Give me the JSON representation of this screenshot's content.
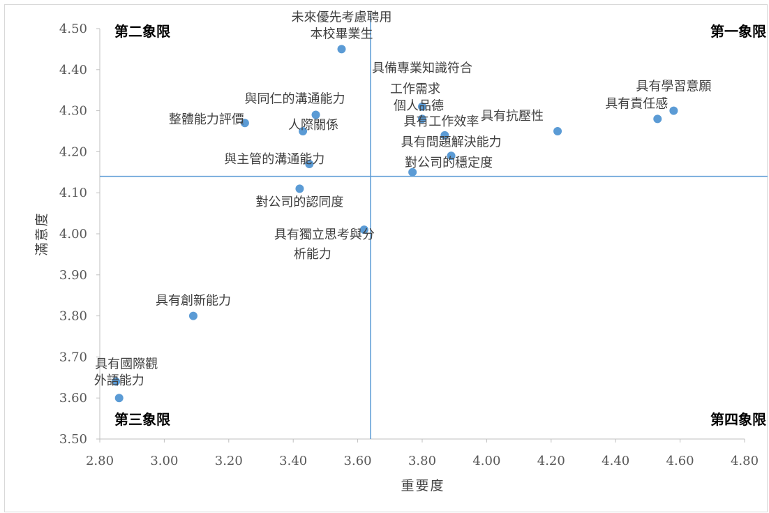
{
  "chart_data": {
    "type": "scatter",
    "xlabel": "重要度",
    "ylabel": "滿意度",
    "xlim": [
      2.8,
      4.8
    ],
    "ylim": [
      3.5,
      4.5
    ],
    "x_ticks": [
      "2.80",
      "3.00",
      "3.20",
      "3.40",
      "3.60",
      "3.80",
      "4.00",
      "4.20",
      "4.40",
      "4.60",
      "4.80"
    ],
    "y_ticks": [
      "3.50",
      "3.60",
      "3.70",
      "3.80",
      "3.90",
      "4.00",
      "4.10",
      "4.20",
      "4.30",
      "4.40",
      "4.50"
    ],
    "grid": false,
    "marker_color": "#5b9bd5",
    "reference_lines": {
      "x": 3.64,
      "y": 4.14,
      "color": "#5b9bd5"
    },
    "quadrants": [
      "第一象限",
      "第二象限",
      "第三象限",
      "第四象限"
    ],
    "points": [
      {
        "x": 3.55,
        "y": 4.45,
        "label": [
          "未來優先考慮聘用",
          "本校畢業生"
        ]
      },
      {
        "x": 3.8,
        "y": 4.31,
        "label": [
          "具備專業知識符合",
          "工作需求"
        ]
      },
      {
        "x": 3.8,
        "y": 4.28,
        "label": [
          "個人品德"
        ]
      },
      {
        "x": 4.58,
        "y": 4.3,
        "label": [
          "具有學習意願"
        ]
      },
      {
        "x": 4.53,
        "y": 4.28,
        "label": [
          "具有責任感"
        ]
      },
      {
        "x": 4.22,
        "y": 4.25,
        "label": [
          "具有抗壓性"
        ]
      },
      {
        "x": 3.87,
        "y": 4.24,
        "label": [
          "具有工作效率"
        ]
      },
      {
        "x": 3.89,
        "y": 4.19,
        "label": [
          "具有問題解決能力"
        ]
      },
      {
        "x": 3.77,
        "y": 4.15,
        "label": [
          "對公司的穩定度"
        ]
      },
      {
        "x": 3.47,
        "y": 4.29,
        "label": [
          "與同仁的溝通能力"
        ]
      },
      {
        "x": 3.25,
        "y": 4.27,
        "label": [
          "整體能力評價"
        ]
      },
      {
        "x": 3.43,
        "y": 4.25,
        "label": [
          "人際關係"
        ]
      },
      {
        "x": 3.45,
        "y": 4.17,
        "label": [
          "與主管的溝通能力"
        ]
      },
      {
        "x": 3.42,
        "y": 4.11,
        "label": [
          "對公司的認同度"
        ]
      },
      {
        "x": 3.62,
        "y": 4.01,
        "label": [
          "具有獨立思考與分",
          "析能力"
        ]
      },
      {
        "x": 3.09,
        "y": 3.8,
        "label": [
          "具有創新能力"
        ]
      },
      {
        "x": 2.85,
        "y": 3.64,
        "label": [
          "具有國際觀"
        ]
      },
      {
        "x": 2.86,
        "y": 3.6,
        "label": [
          "外語能力"
        ]
      }
    ]
  }
}
